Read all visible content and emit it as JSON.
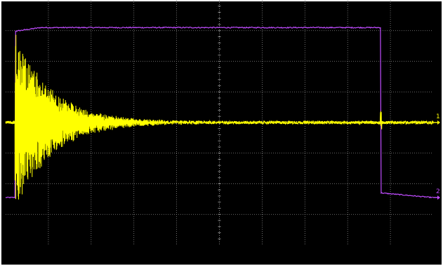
{
  "chart_data": {
    "type": "line",
    "title": "",
    "xlabel": "",
    "ylabel": "",
    "grid": true,
    "x_divisions": 10,
    "y_divisions": 8,
    "xlim": [
      0,
      10
    ],
    "ylim": [
      -4,
      4
    ],
    "series": [
      {
        "color": "#ffff00",
        "kind": "damped-burst",
        "baseline": 0.0,
        "burst_start": 0.22,
        "peak_amplitude": 3.0,
        "decay_end": 2.9,
        "residual_noise": 0.05,
        "glitch_at": 8.78
      },
      {
        "color": "#c04cff",
        "kind": "gate-pulse",
        "low_level": -2.45,
        "high_level": 3.1,
        "rise_at": 0.22,
        "fall_at": 8.78,
        "step_after_fall": -2.3
      }
    ],
    "markers": [
      {
        "glyph": "1",
        "color": "#ffff00",
        "level": 0.0
      },
      {
        "glyph": "2",
        "color": "#c04cff",
        "level": -2.45
      }
    ]
  },
  "colors": {
    "screen": "#000000",
    "grid": "#8a8a8a",
    "frame": "#ffffff"
  }
}
